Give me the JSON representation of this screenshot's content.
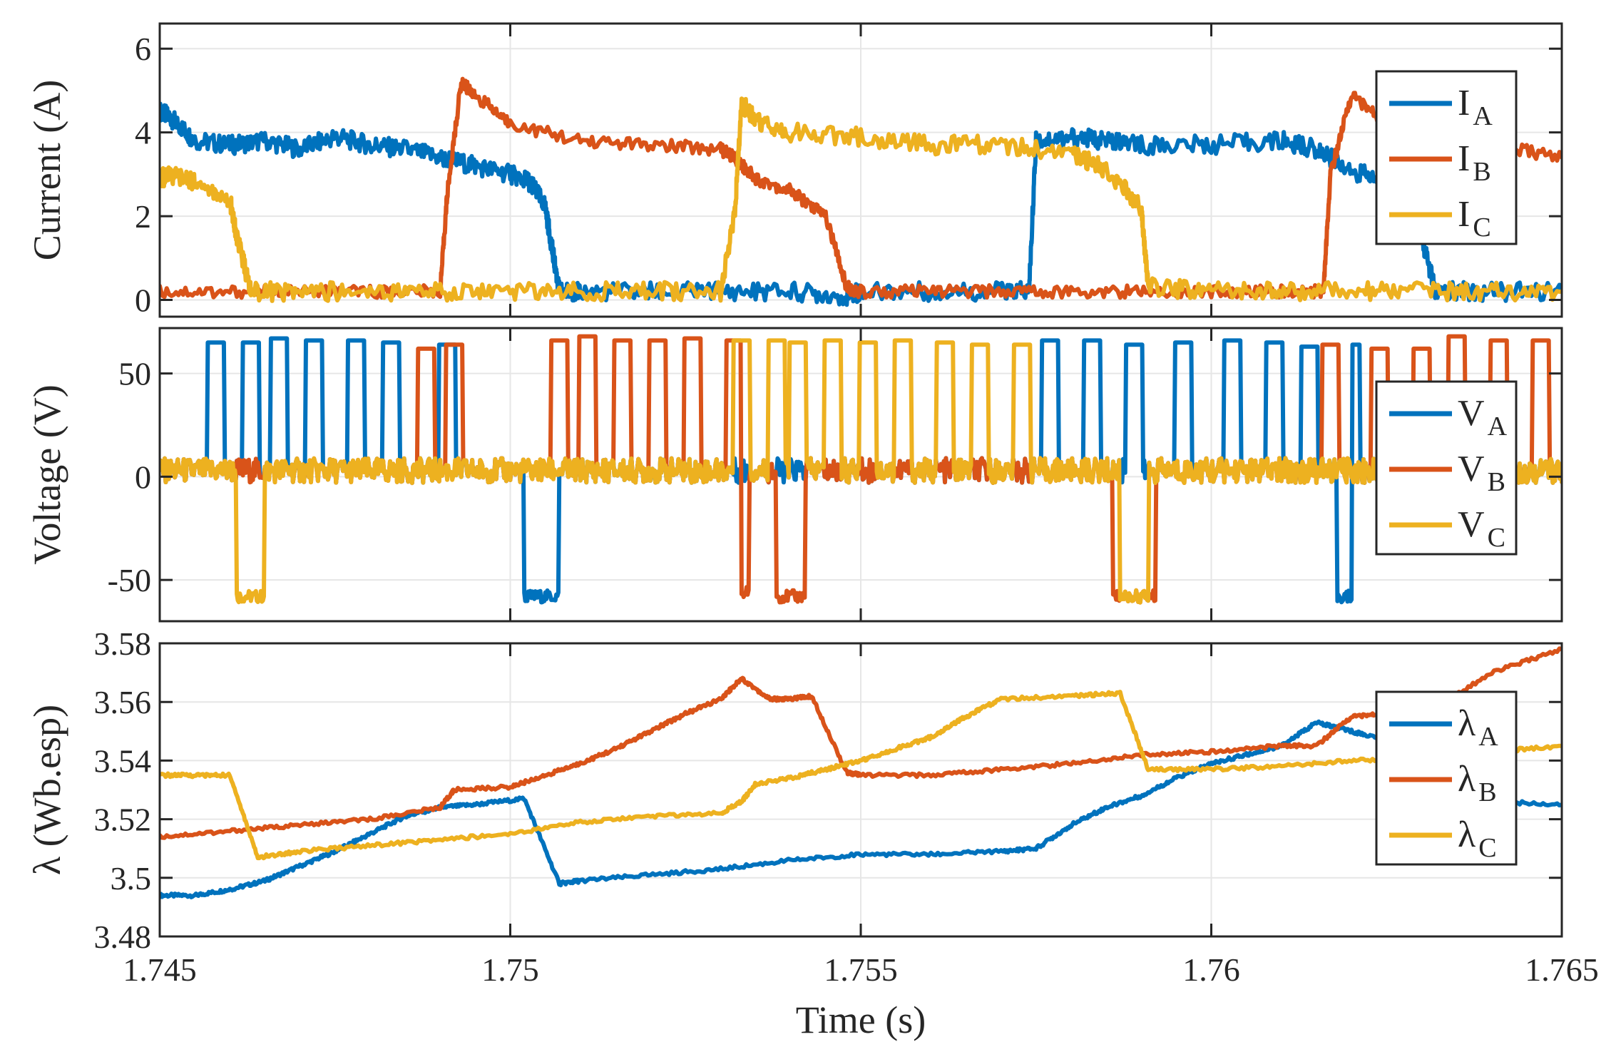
{
  "chart_data": [
    {
      "type": "line",
      "panel": "current",
      "ylabel": "Current (A)",
      "ylim": [
        -0.4,
        6.6
      ],
      "yticks": [
        0,
        2,
        4,
        6
      ],
      "ytick_labels": [
        "0",
        "2",
        "4",
        "6"
      ],
      "xlim": [
        1.745,
        1.765
      ],
      "grid": true,
      "legend_position": "top-right",
      "series": [
        {
          "name": "I_A",
          "label_main": "I",
          "label_sub": "A",
          "color": "#0072BD",
          "x": [
            1.745,
            1.7452,
            1.7455,
            1.746,
            1.7465,
            1.747,
            1.7475,
            1.748,
            1.7485,
            1.749,
            1.7495,
            1.75,
            1.7503,
            1.7505,
            1.7506,
            1.7507,
            1.751,
            1.752,
            1.753,
            1.754,
            1.7548,
            1.755,
            1.756,
            1.757,
            1.7574,
            1.7575,
            1.758,
            1.7585,
            1.759,
            1.76,
            1.761,
            1.7615,
            1.762,
            1.7625,
            1.763,
            1.7632,
            1.764,
            1.765
          ],
          "y": [
            4.5,
            4.3,
            3.8,
            3.7,
            3.8,
            3.6,
            3.9,
            3.7,
            3.6,
            3.4,
            3.2,
            3.0,
            2.8,
            2.2,
            1.2,
            0.2,
            0.2,
            0.2,
            0.2,
            0.2,
            0.1,
            0.2,
            0.2,
            0.2,
            0.2,
            3.8,
            3.9,
            3.8,
            3.7,
            3.7,
            3.8,
            3.6,
            3.1,
            2.8,
            1.5,
            0.2,
            0.2,
            0.2
          ]
        },
        {
          "name": "I_B",
          "label_main": "I",
          "label_sub": "B",
          "color": "#D95319",
          "x": [
            1.745,
            1.746,
            1.747,
            1.748,
            1.749,
            1.7491,
            1.7493,
            1.7495,
            1.75,
            1.751,
            1.752,
            1.753,
            1.7532,
            1.7535,
            1.754,
            1.7545,
            1.7548,
            1.755,
            1.756,
            1.757,
            1.758,
            1.759,
            1.76,
            1.761,
            1.7616,
            1.7617,
            1.762,
            1.7625,
            1.763,
            1.764,
            1.765
          ],
          "y": [
            0.2,
            0.2,
            0.2,
            0.2,
            0.2,
            2.5,
            5.2,
            4.9,
            4.2,
            3.8,
            3.7,
            3.6,
            3.4,
            2.9,
            2.6,
            2.0,
            0.3,
            0.2,
            0.2,
            0.2,
            0.2,
            0.2,
            0.2,
            0.2,
            0.2,
            3.0,
            4.9,
            4.2,
            3.8,
            3.7,
            3.4
          ]
        },
        {
          "name": "I_C",
          "label_main": "I",
          "label_sub": "C",
          "color": "#EDB120",
          "x": [
            1.745,
            1.7452,
            1.7455,
            1.746,
            1.7461,
            1.7463,
            1.747,
            1.748,
            1.749,
            1.75,
            1.751,
            1.752,
            1.753,
            1.7532,
            1.7533,
            1.7535,
            1.754,
            1.755,
            1.756,
            1.757,
            1.758,
            1.7585,
            1.759,
            1.7591,
            1.76,
            1.761,
            1.762,
            1.763,
            1.764,
            1.765
          ],
          "y": [
            2.9,
            3.0,
            2.8,
            2.4,
            1.5,
            0.2,
            0.2,
            0.2,
            0.2,
            0.2,
            0.2,
            0.2,
            0.2,
            2.0,
            4.7,
            4.3,
            4.0,
            3.9,
            3.7,
            3.7,
            3.5,
            3.1,
            2.2,
            0.3,
            0.2,
            0.2,
            0.2,
            0.2,
            0.2,
            0.2
          ]
        }
      ]
    },
    {
      "type": "line",
      "panel": "voltage",
      "ylabel": "Voltage (V)",
      "ylim": [
        -70,
        72
      ],
      "yticks": [
        -50,
        0,
        50
      ],
      "ytick_labels": [
        "-50",
        "0",
        "50"
      ],
      "xlim": [
        1.745,
        1.765
      ],
      "grid": true,
      "legend_position": "right",
      "series": [
        {
          "name": "V_A",
          "label_main": "V",
          "label_sub": "A",
          "color": "#0072BD",
          "base": 3,
          "pulse_width": 0.00012,
          "pulses": [
            [
              1.7458,
              65
            ],
            [
              1.7463,
              65
            ],
            [
              1.7467,
              67
            ],
            [
              1.7472,
              66
            ],
            [
              1.7478,
              66
            ],
            [
              1.7483,
              65
            ],
            [
              1.7491,
              64
            ],
            [
              1.7577,
              66
            ],
            [
              1.7583,
              66
            ],
            [
              1.7589,
              64
            ],
            [
              1.7596,
              65
            ],
            [
              1.7603,
              66
            ],
            [
              1.7609,
              65
            ],
            [
              1.7614,
              63
            ],
            [
              1.762,
              64
            ]
          ],
          "neg": [
            [
              1.7502,
              1.7507,
              -58
            ]
          ],
          "neg_narrow": [
            [
              1.7618,
              1.762,
              -58
            ]
          ]
        },
        {
          "name": "V_B",
          "label_main": "V",
          "label_sub": "B",
          "color": "#D95319",
          "base": 3,
          "pulse_width": 0.00012,
          "pulses": [
            [
              1.7488,
              62
            ],
            [
              1.7492,
              64
            ],
            [
              1.7507,
              66
            ],
            [
              1.7511,
              68
            ],
            [
              1.7516,
              66
            ],
            [
              1.7521,
              66
            ],
            [
              1.7526,
              67
            ],
            [
              1.7532,
              66
            ],
            [
              1.7617,
              64
            ],
            [
              1.7624,
              62
            ],
            [
              1.763,
              62
            ],
            [
              1.7635,
              68
            ],
            [
              1.7641,
              66
            ],
            [
              1.7647,
              66
            ]
          ],
          "neg": [
            [
              1.7586,
              1.7592,
              -58
            ]
          ],
          "neg_narrow": [
            [
              1.7533,
              1.7534,
              -56
            ],
            [
              1.7538,
              1.7542,
              -58
            ]
          ]
        },
        {
          "name": "V_C",
          "label_main": "V",
          "label_sub": "C",
          "color": "#EDB120",
          "base": 3,
          "pulse_width": 0.00012,
          "pulses": [
            [
              1.7533,
              66
            ],
            [
              1.7538,
              66
            ],
            [
              1.7541,
              65
            ],
            [
              1.7546,
              66
            ],
            [
              1.7551,
              65
            ],
            [
              1.7556,
              66
            ],
            [
              1.7562,
              65
            ],
            [
              1.7567,
              64
            ],
            [
              1.7573,
              64
            ]
          ],
          "neg": [
            [
              1.7461,
              1.7465,
              -58
            ],
            [
              1.7587,
              1.7591,
              -58
            ]
          ],
          "neg_narrow": []
        }
      ]
    },
    {
      "type": "line",
      "panel": "flux",
      "ylabel": "λ (Wb.esp)",
      "ylim": [
        3.48,
        3.58
      ],
      "yticks": [
        3.48,
        3.5,
        3.52,
        3.54,
        3.56,
        3.58
      ],
      "ytick_labels": [
        "3.48",
        "3.5",
        "3.52",
        "3.54",
        "3.56",
        "3.58"
      ],
      "xlim": [
        1.745,
        1.765
      ],
      "xticks": [
        1.745,
        1.75,
        1.755,
        1.76,
        1.765
      ],
      "xtick_labels": [
        "1.745",
        "1.75",
        "1.755",
        "1.76",
        "1.765"
      ],
      "xlabel": "Time (s)",
      "grid": true,
      "legend_position": "right",
      "series": [
        {
          "name": "λ_A",
          "label_main": "λ",
          "label_sub": "A",
          "color": "#0072BD",
          "x": [
            1.745,
            1.7455,
            1.746,
            1.7465,
            1.747,
            1.7475,
            1.748,
            1.7485,
            1.749,
            1.7495,
            1.7502,
            1.7507,
            1.751,
            1.752,
            1.753,
            1.754,
            1.755,
            1.756,
            1.757,
            1.7575,
            1.758,
            1.7585,
            1.759,
            1.7595,
            1.76,
            1.7605,
            1.761,
            1.7615,
            1.762,
            1.7625,
            1.763,
            1.764,
            1.765
          ],
          "y": [
            3.494,
            3.494,
            3.496,
            3.499,
            3.504,
            3.509,
            3.515,
            3.521,
            3.524,
            3.525,
            3.527,
            3.498,
            3.499,
            3.501,
            3.503,
            3.506,
            3.508,
            3.508,
            3.509,
            3.51,
            3.518,
            3.524,
            3.528,
            3.534,
            3.539,
            3.542,
            3.545,
            3.553,
            3.55,
            3.547,
            3.54,
            3.526,
            3.525
          ]
        },
        {
          "name": "λ_B",
          "label_main": "λ",
          "label_sub": "B",
          "color": "#D95319",
          "x": [
            1.745,
            1.746,
            1.747,
            1.748,
            1.749,
            1.7492,
            1.75,
            1.7505,
            1.751,
            1.7515,
            1.752,
            1.7525,
            1.753,
            1.7533,
            1.7537,
            1.754,
            1.7543,
            1.7548,
            1.755,
            1.756,
            1.757,
            1.758,
            1.759,
            1.76,
            1.761,
            1.7615,
            1.762,
            1.7625,
            1.763,
            1.764,
            1.765
          ],
          "y": [
            3.514,
            3.516,
            3.518,
            3.52,
            3.524,
            3.53,
            3.531,
            3.535,
            3.539,
            3.544,
            3.55,
            3.556,
            3.561,
            3.568,
            3.561,
            3.561,
            3.562,
            3.536,
            3.535,
            3.535,
            3.537,
            3.539,
            3.542,
            3.543,
            3.545,
            3.545,
            3.555,
            3.556,
            3.555,
            3.57,
            3.578
          ]
        },
        {
          "name": "λ_C",
          "label_main": "λ",
          "label_sub": "C",
          "color": "#EDB120",
          "x": [
            1.745,
            1.7455,
            1.746,
            1.7464,
            1.747,
            1.748,
            1.749,
            1.75,
            1.751,
            1.752,
            1.753,
            1.7533,
            1.7535,
            1.754,
            1.7545,
            1.755,
            1.7555,
            1.756,
            1.7565,
            1.757,
            1.758,
            1.7587,
            1.7591,
            1.76,
            1.761,
            1.762,
            1.763,
            1.764,
            1.765
          ],
          "y": [
            3.535,
            3.535,
            3.535,
            3.507,
            3.509,
            3.511,
            3.513,
            3.515,
            3.519,
            3.521,
            3.522,
            3.526,
            3.532,
            3.534,
            3.537,
            3.54,
            3.544,
            3.548,
            3.555,
            3.561,
            3.562,
            3.563,
            3.537,
            3.537,
            3.538,
            3.54,
            3.541,
            3.543,
            3.545
          ]
        }
      ]
    }
  ]
}
